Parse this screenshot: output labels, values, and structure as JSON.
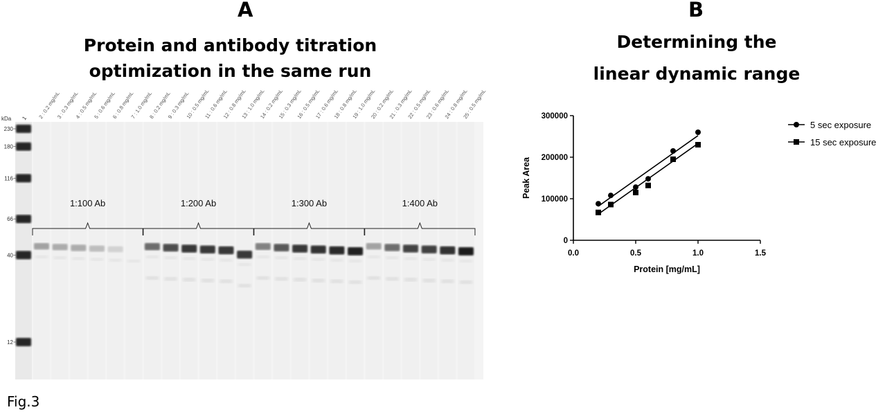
{
  "figure_label": "Fig.3",
  "panel_a": {
    "letter": "A",
    "title_line1": "Protein and antibody titration",
    "title_line2": "optimization in the same run",
    "kda_label": "kDa",
    "ladder_lane": "1",
    "ladder_markers": [
      {
        "label": "230",
        "kda": 230
      },
      {
        "label": "180",
        "kda": 180
      },
      {
        "label": "116",
        "kda": 116
      },
      {
        "label": "66",
        "kda": 66
      },
      {
        "label": "40",
        "kda": 40
      },
      {
        "label": "12",
        "kda": 12
      }
    ],
    "lanes": [
      "2 : 0.2 mg/mL",
      "3 : 0.3 mg/mL",
      "4 : 0.5 mg/mL",
      "5 : 0.6 mg/mL",
      "6 : 0.8 mg/mL",
      "7 : 1.0 mg/mL",
      "8 : 0.2 mg/mL",
      "9 : 0.3 mg/mL",
      "10 : 0.5 mg/mL",
      "11 : 0.6 mg/mL",
      "12 : 0.8 mg/mL",
      "13 : 1.0 mg/mL",
      "14 : 0.2 mg/mL",
      "15 : 0.3 mg/mL",
      "16 : 0.5 mg/mL",
      "17 : 0.6 mg/mL",
      "18 : 0.8 mg/mL",
      "19 : 1.0 mg/mL",
      "20 : 0.2 mg/mL",
      "21 : 0.3 mg/mL",
      "22 : 0.5 mg/mL",
      "23 : 0.6 mg/mL",
      "24 : 0.8 mg/mL",
      "25 : 0.5 mg/mL"
    ],
    "band_intensity": [
      0.35,
      0.3,
      0.3,
      0.22,
      0.12,
      0.0,
      0.6,
      0.75,
      0.85,
      0.85,
      0.85,
      0.85,
      0.5,
      0.7,
      0.85,
      0.88,
      0.92,
      0.95,
      0.35,
      0.6,
      0.8,
      0.82,
      0.88,
      0.98
    ],
    "groups": [
      "1:100 Ab",
      "1:200 Ab",
      "1:300 Ab",
      "1:400 Ab"
    ]
  },
  "panel_b": {
    "letter": "B",
    "title_line1": "Determining the",
    "title_line2": "linear dynamic range"
  },
  "chart_data": {
    "type": "scatter",
    "title": "Determining the linear dynamic range",
    "xlabel": "Protein [mg/mL]",
    "ylabel": "Peak Area",
    "xlim": [
      0.0,
      1.5
    ],
    "ylim": [
      0,
      300000
    ],
    "xticks": [
      0.0,
      0.5,
      1.0,
      1.5
    ],
    "xtick_labels": [
      "0.0",
      "0.5",
      "1.0",
      "1.5"
    ],
    "yticks": [
      0,
      100000,
      200000,
      300000
    ],
    "ytick_labels": [
      "0",
      "100000",
      "200000",
      "300000"
    ],
    "legend_position": "top-right",
    "series": [
      {
        "name": "5 sec exposure",
        "marker": "circle",
        "x": [
          0.2,
          0.3,
          0.5,
          0.6,
          0.8,
          1.0
        ],
        "y": [
          88000,
          108000,
          128000,
          148000,
          215000,
          260000
        ],
        "fit": {
          "x": [
            0.2,
            1.0
          ],
          "y": [
            82000,
            252000
          ]
        }
      },
      {
        "name": "15 sec exposure",
        "marker": "square",
        "x": [
          0.2,
          0.3,
          0.5,
          0.6,
          0.8,
          1.0
        ],
        "y": [
          67000,
          86000,
          115000,
          132000,
          195000,
          230000
        ],
        "fit": {
          "x": [
            0.2,
            1.0
          ],
          "y": [
            63000,
            233000
          ]
        }
      }
    ]
  }
}
